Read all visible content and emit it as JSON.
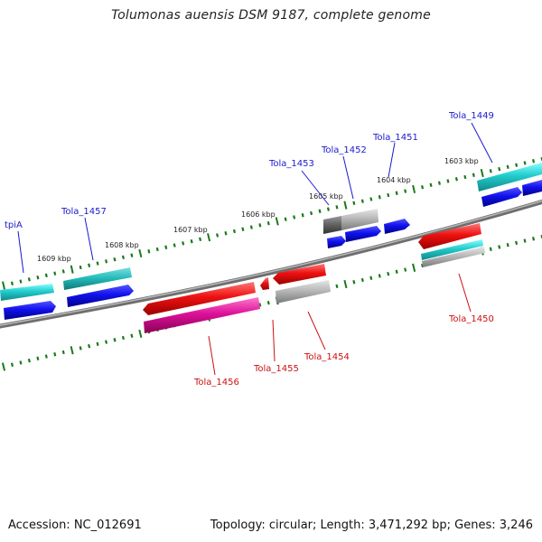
{
  "title": "Tolumonas auensis DSM 9187, complete genome",
  "footer": {
    "accession": "Accession: NC_012691",
    "stats": "Topology: circular; Length: 3,471,292 bp; Genes: 3,246"
  },
  "colors": {
    "backbone": "#8a8a8a",
    "tick": "#1a7a1a",
    "label_forward": "#1a1acc",
    "label_reverse": "#cc1111",
    "gene_red": "#ee1111",
    "gene_blue": "#1111ee",
    "gene_cyan": "#22cccc",
    "gene_gray": "#aaaaaa",
    "gene_magenta": "#dd1199"
  },
  "scale_labels": [
    "1609 kbp",
    "1608 kbp",
    "1607 kbp",
    "1606 kbp",
    "1605 kbp",
    "1604 kbp",
    "1603 kbp"
  ],
  "gene_labels": {
    "forward": [
      "tpiA",
      "Tola_1457",
      "Tola_1453",
      "Tola_1452",
      "Tola_1451",
      "Tola_1449"
    ],
    "reverse": [
      "Tola_1456",
      "Tola_1455",
      "Tola_1454",
      "Tola_1450"
    ]
  }
}
